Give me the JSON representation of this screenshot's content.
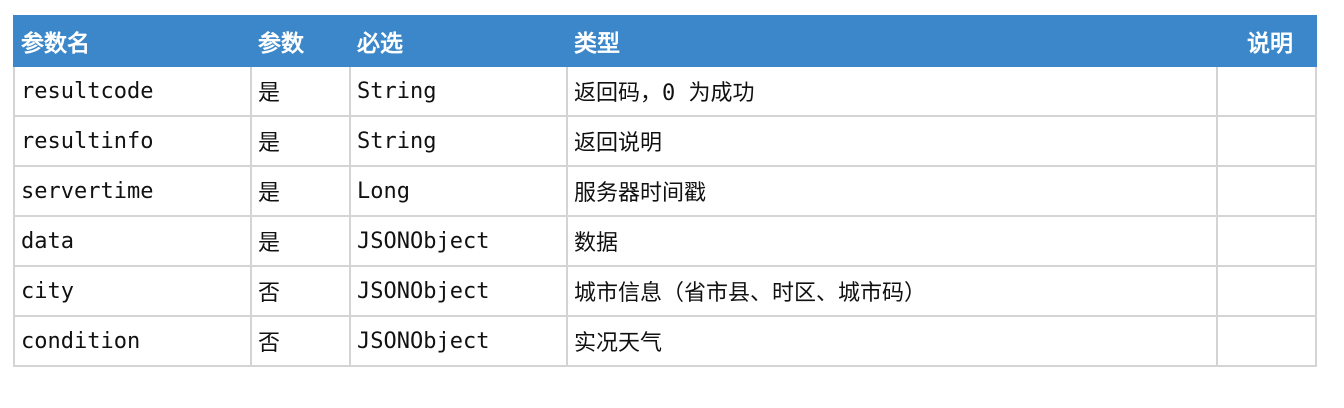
{
  "header": [
    "参数名",
    "参数",
    "必选",
    "类型",
    "说明"
  ],
  "rows": [
    [
      "resultcode",
      "是",
      "String",
      "返回码，0 为成功",
      ""
    ],
    [
      "resultinfo",
      "是",
      "String",
      "返回说明",
      ""
    ],
    [
      "servertime",
      "是",
      "Long",
      "服务器时间戳",
      ""
    ],
    [
      "data",
      "是",
      "JSONObject",
      "数据",
      ""
    ],
    [
      "city",
      "否",
      "JSONObject",
      "城市信息（省市县、时区、城市码）",
      ""
    ],
    [
      "condition",
      "否",
      "JSONObject",
      "实况天气",
      ""
    ]
  ],
  "colors": {
    "header_bg": "#3b87c9",
    "border": "#d4d4d4"
  }
}
